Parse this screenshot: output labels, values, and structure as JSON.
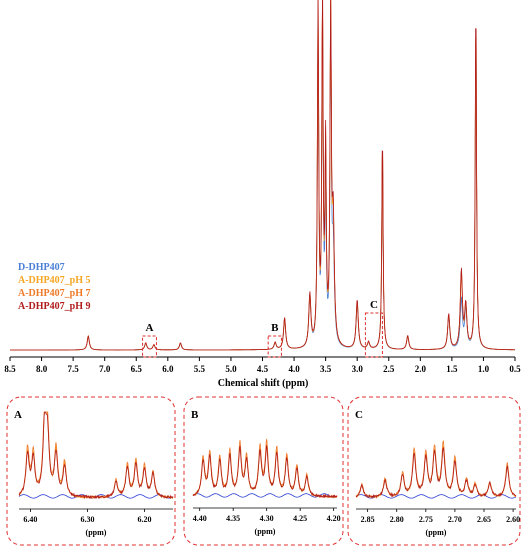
{
  "chart_data": [
    {
      "type": "line",
      "xlabel": "Chemical shift (ppm)",
      "x_ticks": [
        "8.5",
        "8.0",
        "7.5",
        "7.0",
        "6.5",
        "6.0",
        "5.5",
        "5.0",
        "4.5",
        "4.0",
        "3.5",
        "3.0",
        "2.5",
        "2.0",
        "1.5",
        "1.0",
        "0.5"
      ],
      "xlim": [
        8.5,
        0.5
      ],
      "series": [
        {
          "name": "D-DHP407",
          "color": "#4a7fd6"
        },
        {
          "name": "A-DHP407_pH 5",
          "color": "#f5a623"
        },
        {
          "name": "A-DHP407_pH 7",
          "color": "#ef7a2a"
        },
        {
          "name": "A-DHP407_pH 9",
          "color": "#b01c1c"
        }
      ],
      "peaks": [
        {
          "x": 7.26,
          "h": 0.04
        },
        {
          "x": 6.35,
          "h": 0.02
        },
        {
          "x": 6.22,
          "h": 0.015
        },
        {
          "x": 5.8,
          "h": 0.02
        },
        {
          "x": 4.3,
          "h": 0.02
        },
        {
          "x": 4.15,
          "h": 0.09
        },
        {
          "x": 3.75,
          "h": 0.15
        },
        {
          "x": 3.62,
          "h": 1.0
        },
        {
          "x": 3.55,
          "h": 1.0
        },
        {
          "x": 3.5,
          "h": 0.55
        },
        {
          "x": 3.42,
          "h": 1.0
        },
        {
          "x": 3.38,
          "h": 0.35
        },
        {
          "x": 3.0,
          "h": 0.14
        },
        {
          "x": 2.82,
          "h": 0.02
        },
        {
          "x": 2.6,
          "h": 0.62
        },
        {
          "x": 2.2,
          "h": 0.04
        },
        {
          "x": 1.55,
          "h": 0.1
        },
        {
          "x": 1.35,
          "h": 0.22
        },
        {
          "x": 1.28,
          "h": 0.12
        },
        {
          "x": 1.12,
          "h": 1.0
        }
      ],
      "regions": [
        {
          "label": "A",
          "from": 6.4,
          "to": 6.18
        },
        {
          "label": "B",
          "from": 4.41,
          "to": 4.2
        },
        {
          "label": "C",
          "from": 2.87,
          "to": 2.6
        }
      ]
    },
    {
      "type": "line",
      "label": "A",
      "xlabel": "(ppm)",
      "x_ticks": [
        "6.40",
        "6.30",
        "6.20"
      ],
      "xlim": [
        6.42,
        6.15
      ]
    },
    {
      "type": "line",
      "label": "B",
      "xlabel": "(ppm)",
      "x_ticks": [
        "4.40",
        "4.35",
        "4.30",
        "4.25",
        "4.20"
      ],
      "xlim": [
        4.41,
        4.195
      ]
    },
    {
      "type": "line",
      "label": "C",
      "xlabel": "(ppm)",
      "x_ticks": [
        "2.85",
        "2.80",
        "2.75",
        "2.70",
        "2.65",
        "2.60"
      ],
      "xlim": [
        2.87,
        2.595
      ]
    }
  ]
}
